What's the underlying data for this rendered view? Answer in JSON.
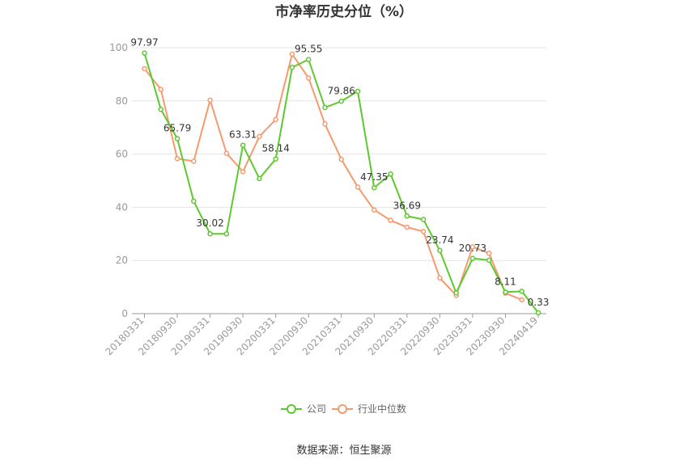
{
  "chart_data": {
    "type": "line",
    "title": "市净率历史分位（%）",
    "source": "数据来源：恒生聚源",
    "ylim": [
      0,
      100
    ],
    "yticks": [
      "0",
      "20",
      "40",
      "60",
      "80",
      "100"
    ],
    "x_tick_labels": [
      "20180331",
      "20180930",
      "20190331",
      "20190930",
      "20200331",
      "20200930",
      "20210331",
      "20210930",
      "20220331",
      "20220930",
      "20230331",
      "20230930",
      "20240419"
    ],
    "series": [
      {
        "name": "公司",
        "color": "#5ec82f",
        "values": [
          97.97,
          76.8,
          65.79,
          42.3,
          30.02,
          30.0,
          63.31,
          50.8,
          58.14,
          92.6,
          95.55,
          77.5,
          79.86,
          83.6,
          47.35,
          52.5,
          36.69,
          35.4,
          23.74,
          7.8,
          20.73,
          20.1,
          8.11,
          8.4,
          0.33
        ]
      },
      {
        "name": "行业中位数",
        "color": "#f59a6e",
        "values": [
          92.1,
          84.3,
          58.3,
          57.3,
          80.3,
          60.3,
          53.4,
          66.6,
          73.0,
          97.6,
          88.6,
          71.3,
          58.0,
          47.6,
          39.0,
          35.1,
          32.5,
          30.9,
          13.4,
          6.9,
          25.1,
          22.7,
          7.7,
          5.2,
          null
        ]
      }
    ],
    "data_labels": [
      {
        "index": 0,
        "text": "97.97"
      },
      {
        "index": 2,
        "text": "65.79"
      },
      {
        "index": 4,
        "text": "30.02"
      },
      {
        "index": 6,
        "text": "63.31"
      },
      {
        "index": 8,
        "text": "58.14"
      },
      {
        "index": 10,
        "text": "95.55"
      },
      {
        "index": 12,
        "text": "79.86"
      },
      {
        "index": 14,
        "text": "47.35"
      },
      {
        "index": 16,
        "text": "36.69"
      },
      {
        "index": 18,
        "text": "23.74"
      },
      {
        "index": 20,
        "text": "20.73"
      },
      {
        "index": 22,
        "text": "8.11"
      },
      {
        "index": 24,
        "text": "0.33"
      }
    ],
    "legend": {
      "items": [
        "公司",
        "行业中位数"
      ],
      "position": "bottom"
    },
    "grid": true
  }
}
